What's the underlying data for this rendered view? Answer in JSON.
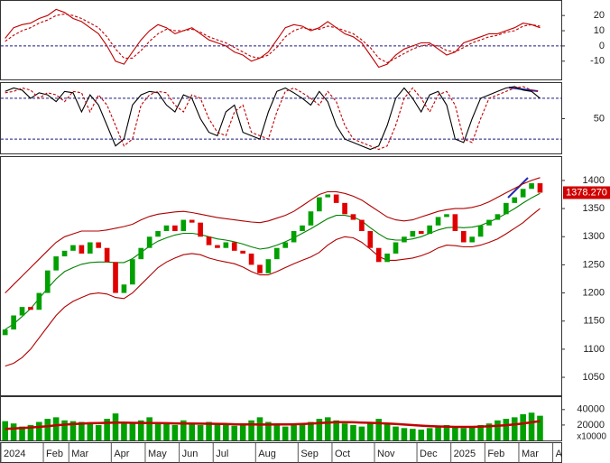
{
  "chart_data": [
    {
      "type": "line",
      "ylim": [
        -22,
        29
      ],
      "yticks": [
        20,
        10,
        0,
        -10
      ],
      "hlines": [
        0
      ],
      "series": [
        {
          "color": "#c00000",
          "values": [
            5,
            12,
            14,
            15,
            18,
            20,
            24,
            22,
            18,
            16,
            12,
            8,
            0,
            -10,
            -12,
            -4,
            4,
            10,
            14,
            12,
            8,
            10,
            12,
            8,
            4,
            2,
            0,
            -4,
            -6,
            -10,
            -8,
            -4,
            4,
            12,
            14,
            13,
            10,
            12,
            16,
            12,
            8,
            6,
            2,
            -6,
            -14,
            -12,
            -6,
            -2,
            0,
            2,
            2,
            -2,
            -6,
            -4,
            2,
            4,
            6,
            8,
            8,
            10,
            12,
            15,
            14,
            12
          ]
        },
        {
          "color": "#c00000",
          "dashed": true,
          "values": [
            3,
            7,
            10,
            12,
            15,
            17,
            20,
            21,
            20,
            18,
            15,
            12,
            6,
            -2,
            -8,
            -8,
            -3,
            3,
            8,
            11,
            10,
            10,
            11,
            9,
            6,
            4,
            2,
            -1,
            -4,
            -7,
            -8,
            -6,
            -1,
            6,
            10,
            12,
            11,
            11,
            13,
            12,
            10,
            8,
            4,
            -1,
            -8,
            -11,
            -8,
            -5,
            -2,
            0,
            1,
            0,
            -3,
            -4,
            -1,
            2,
            4,
            6,
            7,
            9,
            10,
            13,
            14,
            13
          ]
        }
      ]
    },
    {
      "type": "line",
      "ylim": [
        -1,
        101
      ],
      "yticks": [
        50
      ],
      "hlines": [
        80,
        20
      ],
      "series": [
        {
          "color": "#000000",
          "values": [
            90,
            95,
            92,
            80,
            88,
            85,
            75,
            90,
            88,
            60,
            85,
            70,
            40,
            10,
            20,
            70,
            85,
            90,
            88,
            70,
            60,
            85,
            80,
            50,
            30,
            25,
            60,
            70,
            30,
            25,
            20,
            60,
            90,
            95,
            88,
            80,
            70,
            90,
            75,
            40,
            20,
            15,
            10,
            5,
            10,
            40,
            80,
            95,
            80,
            60,
            85,
            90,
            70,
            20,
            15,
            50,
            80,
            85,
            90,
            95,
            97,
            92,
            90,
            80
          ]
        },
        {
          "color": "#c00000",
          "dashed": true,
          "values": [
            88,
            90,
            95,
            92,
            80,
            88,
            85,
            75,
            90,
            88,
            60,
            85,
            70,
            40,
            10,
            20,
            70,
            85,
            90,
            88,
            70,
            60,
            85,
            80,
            50,
            30,
            25,
            60,
            70,
            30,
            25,
            20,
            60,
            90,
            95,
            88,
            80,
            70,
            90,
            75,
            40,
            20,
            15,
            10,
            5,
            10,
            40,
            80,
            95,
            80,
            60,
            85,
            90,
            70,
            20,
            15,
            50,
            80,
            85,
            90,
            95,
            97,
            92,
            90
          ]
        }
      ]
    },
    {
      "type": "candlestick",
      "ylim": [
        1018,
        1440
      ],
      "yticks": [
        1400,
        1350,
        1300,
        1250,
        1200,
        1150,
        1100,
        1050
      ],
      "up_color": "#00a000",
      "down_color": "#e00000",
      "last_label": "1378.270",
      "open": [
        1125,
        1135,
        1160,
        1175,
        1170,
        1200,
        1240,
        1265,
        1275,
        1285,
        1270,
        1290,
        1280,
        1255,
        1200,
        1215,
        1260,
        1280,
        1300,
        1310,
        1320,
        1310,
        1330,
        1325,
        1300,
        1285,
        1280,
        1290,
        1275,
        1270,
        1250,
        1235,
        1260,
        1280,
        1290,
        1310,
        1320,
        1345,
        1370,
        1375,
        1360,
        1340,
        1330,
        1310,
        1280,
        1255,
        1270,
        1290,
        1300,
        1310,
        1305,
        1320,
        1335,
        1340,
        1310,
        1290,
        1300,
        1320,
        1330,
        1340,
        1360,
        1370,
        1385,
        1395
      ],
      "close": [
        1135,
        1160,
        1175,
        1170,
        1200,
        1240,
        1265,
        1275,
        1285,
        1270,
        1290,
        1280,
        1255,
        1200,
        1215,
        1260,
        1280,
        1300,
        1310,
        1320,
        1310,
        1330,
        1325,
        1300,
        1285,
        1280,
        1290,
        1275,
        1270,
        1250,
        1235,
        1260,
        1280,
        1290,
        1310,
        1320,
        1345,
        1370,
        1375,
        1360,
        1340,
        1330,
        1310,
        1280,
        1255,
        1270,
        1290,
        1300,
        1310,
        1305,
        1320,
        1335,
        1340,
        1310,
        1290,
        1300,
        1320,
        1330,
        1340,
        1360,
        1370,
        1385,
        1395,
        1378.27
      ],
      "series": [
        {
          "color": "#b00000",
          "values": [
            1200,
            1215,
            1230,
            1245,
            1260,
            1275,
            1290,
            1300,
            1305,
            1310,
            1310,
            1310,
            1312,
            1315,
            1318,
            1322,
            1330,
            1336,
            1340,
            1342,
            1344,
            1345,
            1343,
            1340,
            1337,
            1334,
            1332,
            1330,
            1328,
            1326,
            1325,
            1328,
            1333,
            1338,
            1345,
            1355,
            1365,
            1375,
            1380,
            1380,
            1377,
            1372,
            1365,
            1355,
            1345,
            1335,
            1330,
            1328,
            1330,
            1335,
            1340,
            1345,
            1348,
            1350,
            1350,
            1352,
            1356,
            1362,
            1370,
            1378,
            1386,
            1394,
            1400,
            1405
          ]
        },
        {
          "color": "#008000",
          "values": [
            1135,
            1145,
            1158,
            1172,
            1190,
            1208,
            1225,
            1238,
            1245,
            1251,
            1254,
            1255,
            1255,
            1254,
            1254,
            1261,
            1272,
            1283,
            1292,
            1298,
            1303,
            1306,
            1306,
            1304,
            1300,
            1296,
            1294,
            1291,
            1287,
            1282,
            1278,
            1280,
            1285,
            1291,
            1298,
            1306,
            1314,
            1323,
            1332,
            1338,
            1338,
            1335,
            1328,
            1316,
            1305,
            1296,
            1294,
            1294,
            1296,
            1300,
            1306,
            1312,
            1316,
            1317,
            1316,
            1317,
            1320,
            1326,
            1333,
            1341,
            1350,
            1360,
            1369,
            1377
          ]
        },
        {
          "color": "#b00000",
          "values": [
            1070,
            1075,
            1085,
            1100,
            1120,
            1140,
            1160,
            1175,
            1185,
            1192,
            1198,
            1200,
            1198,
            1192,
            1190,
            1200,
            1215,
            1230,
            1245,
            1255,
            1262,
            1268,
            1270,
            1268,
            1262,
            1258,
            1255,
            1252,
            1246,
            1238,
            1232,
            1232,
            1238,
            1245,
            1252,
            1258,
            1264,
            1272,
            1285,
            1295,
            1300,
            1298,
            1290,
            1278,
            1265,
            1258,
            1258,
            1260,
            1262,
            1266,
            1272,
            1280,
            1285,
            1284,
            1282,
            1282,
            1285,
            1290,
            1296,
            1305,
            1315,
            1325,
            1338,
            1350
          ]
        }
      ]
    },
    {
      "type": "bar",
      "ylim": [
        0,
        55000
      ],
      "yticks": [
        40000,
        20000
      ],
      "unit_label": "x10000",
      "color": "#00a000",
      "categories": [
        "2024",
        null,
        null,
        null,
        null,
        "Feb",
        null,
        null,
        "Mar",
        null,
        null,
        null,
        null,
        "Apr",
        null,
        null,
        null,
        "May",
        null,
        null,
        null,
        "Jun",
        null,
        null,
        null,
        "Jul",
        null,
        null,
        null,
        null,
        "Aug",
        null,
        null,
        null,
        null,
        "Sep",
        null,
        null,
        null,
        "Oct",
        null,
        null,
        null,
        null,
        "Nov",
        null,
        null,
        null,
        null,
        "Dec",
        null,
        null,
        null,
        "2025",
        null,
        null,
        null,
        "Feb",
        null,
        null,
        null,
        "Mar",
        null,
        null,
        null,
        "A"
      ],
      "values": [
        25000,
        22000,
        18000,
        20000,
        24000,
        28000,
        30000,
        26000,
        25000,
        24000,
        22000,
        20000,
        28000,
        35000,
        24000,
        22000,
        26000,
        30000,
        24000,
        22000,
        20000,
        26000,
        22000,
        20000,
        24000,
        22000,
        20000,
        19000,
        22000,
        26000,
        30000,
        24000,
        20000,
        18000,
        20000,
        22000,
        24000,
        28000,
        30000,
        26000,
        22000,
        20000,
        18000,
        24000,
        28000,
        22000,
        18000,
        16000,
        15000,
        14000,
        16000,
        18000,
        20000,
        17000,
        16000,
        18000,
        20000,
        22000,
        26000,
        28000,
        30000,
        34000,
        36000,
        32000,
        null,
        null
      ],
      "series": [
        {
          "color": "#c00000",
          "values": [
            15000,
            15500,
            16000,
            16800,
            17500,
            18500,
            19500,
            20500,
            21200,
            21800,
            22300,
            22600,
            22800,
            23000,
            23000,
            22800,
            22700,
            22600,
            22500,
            22300,
            22100,
            22000,
            21900,
            21800,
            21700,
            21500,
            21300,
            21000,
            20800,
            20700,
            20600,
            20600,
            20700,
            20800,
            21000,
            21300,
            21800,
            22500,
            23200,
            23600,
            23700,
            23500,
            23200,
            22800,
            22400,
            21900,
            21300,
            20600,
            19900,
            19200,
            18600,
            18100,
            17800,
            17600,
            17500,
            17600,
            17900,
            18400,
            19000,
            19800,
            20800,
            22000,
            23500,
            25000,
            null,
            null
          ]
        }
      ]
    }
  ]
}
